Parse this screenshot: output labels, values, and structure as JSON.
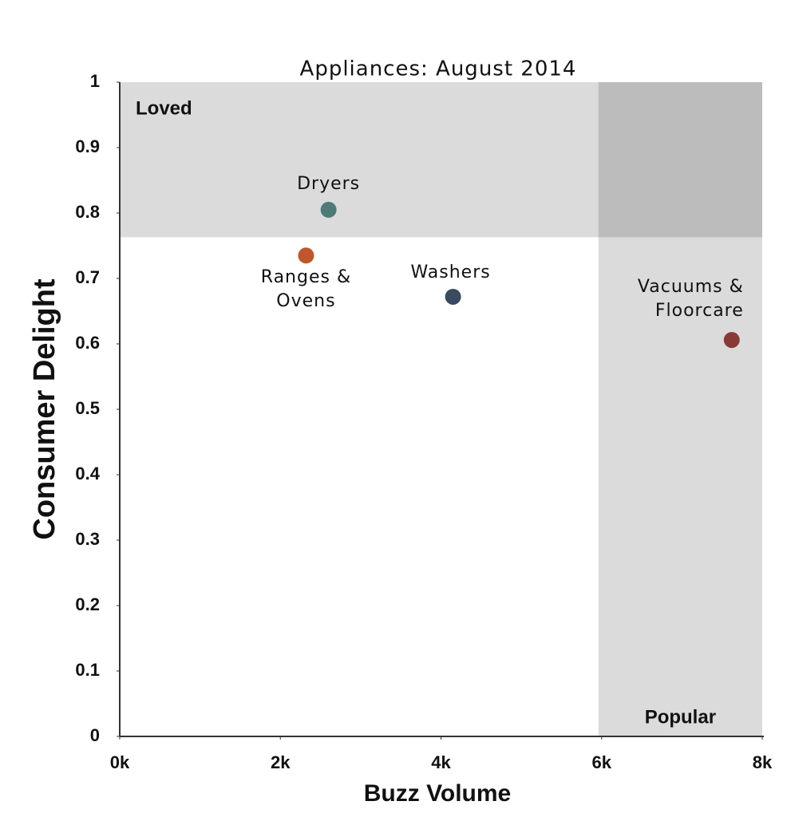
{
  "chart_data": {
    "type": "scatter",
    "title": "Appliances: August 2014",
    "x_label": "Buzz Volume",
    "y_label": "Consumer Delight",
    "xlim": [
      0,
      8000
    ],
    "ylim": [
      0,
      1
    ],
    "xticks": [
      {
        "value": 0,
        "label": "0k"
      },
      {
        "value": 2000,
        "label": "2k"
      },
      {
        "value": 4000,
        "label": "4k"
      },
      {
        "value": 6000,
        "label": "6k"
      },
      {
        "value": 8000,
        "label": "8k"
      }
    ],
    "yticks": [
      0,
      0.1,
      0.2,
      0.3,
      0.4,
      0.5,
      0.6,
      0.7,
      0.8,
      0.9,
      1
    ],
    "regions": [
      {
        "label": "Loved",
        "y_from": 0.763,
        "color": "rgba(0,0,0,0.14)"
      },
      {
        "label": "Popular",
        "x_from": 5960,
        "color": "rgba(0,0,0,0.14)"
      }
    ],
    "series": [
      {
        "name": "Dryers",
        "color": "#4e7a78",
        "x": [
          2600
        ],
        "values": [
          0.805
        ]
      },
      {
        "name": "Ranges &\nOvens",
        "color": "#c0562b",
        "x": [
          2320
        ],
        "values": [
          0.735
        ]
      },
      {
        "name": "Washers",
        "color": "#3a4a60",
        "x": [
          4150
        ],
        "values": [
          0.672
        ]
      },
      {
        "name": "Vacuums &\nFloorcare",
        "color": "#8a3a36",
        "x": [
          7620
        ],
        "values": [
          0.606
        ]
      }
    ]
  }
}
